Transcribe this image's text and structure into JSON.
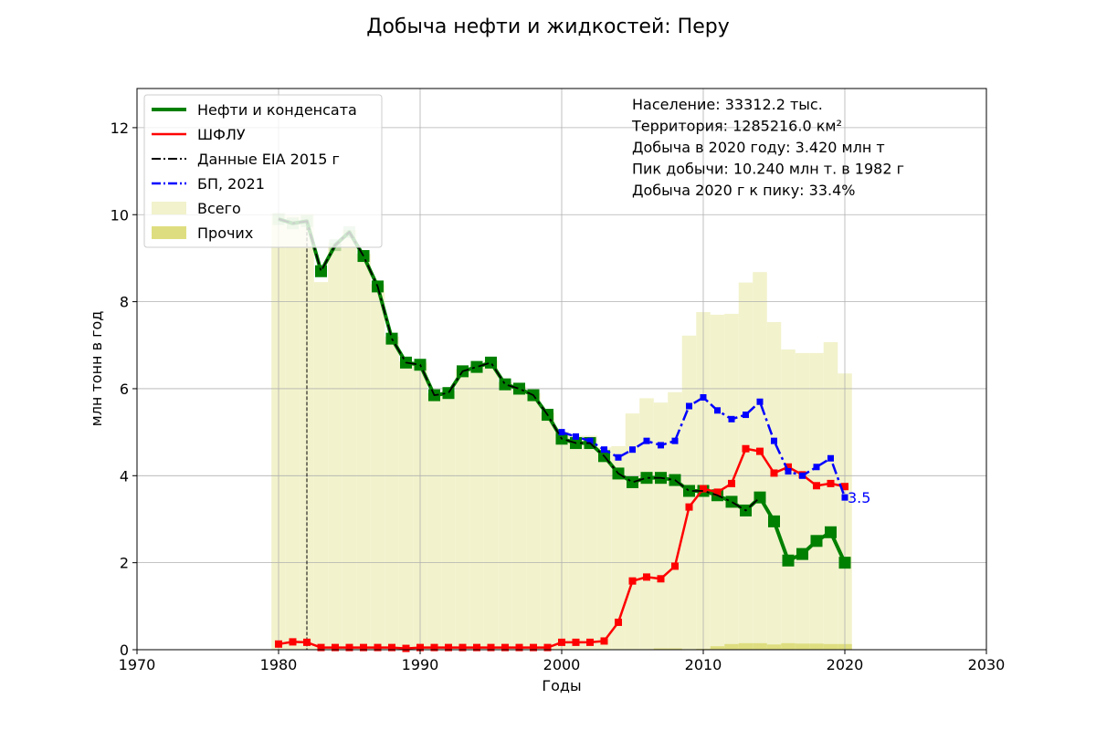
{
  "chart_data": {
    "type": "line",
    "title": "Добыча нефти и жидкостей: Перу",
    "xlabel": "Годы",
    "ylabel": "млн тонн в год",
    "xlim": [
      1970,
      2030
    ],
    "ylim": [
      0,
      12.9
    ],
    "xticks": [
      1970,
      1980,
      1990,
      2000,
      2010,
      2020,
      2030
    ],
    "yticks": [
      0,
      2,
      4,
      6,
      8,
      10,
      12
    ],
    "grid": true,
    "legend_position": "top-left",
    "info_lines": [
      "Население: 33312.2 тыс.",
      "Территория: 1285216.0 км²",
      "Добыча в 2020 году: 3.420 млн т",
      "Пик добычи: 10.240 млн т. в 1982 г",
      "Добыча 2020 г к пику: 33.4%"
    ],
    "marker_line_year": 1982,
    "end_label": "3.5",
    "years": [
      1980,
      1981,
      1982,
      1983,
      1984,
      1985,
      1986,
      1987,
      1988,
      1989,
      1990,
      1991,
      1992,
      1993,
      1994,
      1995,
      1996,
      1997,
      1998,
      1999,
      2000,
      2001,
      2002,
      2003,
      2004,
      2005,
      2006,
      2007,
      2008,
      2009,
      2010,
      2011,
      2012,
      2013,
      2014,
      2015,
      2016,
      2017,
      2018,
      2019,
      2020
    ],
    "series": [
      {
        "name": "Нефти и конденсата",
        "color": "#008000",
        "style": "solid-thick",
        "x": [
          1980,
          1981,
          1982,
          1983,
          1984,
          1985,
          1986,
          1987,
          1988,
          1989,
          1990,
          1991,
          1992,
          1993,
          1994,
          1995,
          1996,
          1997,
          1998,
          1999,
          2000,
          2001,
          2002,
          2003,
          2004,
          2005,
          2006,
          2007,
          2008,
          2009,
          2010,
          2011,
          2012,
          2013,
          2014,
          2015,
          2016,
          2017,
          2018,
          2019,
          2020
        ],
        "values": [
          9.9,
          9.8,
          9.85,
          8.7,
          9.3,
          9.6,
          9.05,
          8.35,
          7.15,
          6.6,
          6.55,
          5.85,
          5.9,
          6.4,
          6.5,
          6.6,
          6.1,
          6.0,
          5.85,
          5.4,
          4.85,
          4.75,
          4.75,
          4.45,
          4.05,
          3.85,
          3.95,
          3.95,
          3.9,
          3.65,
          3.65,
          3.55,
          3.4,
          3.2,
          3.5,
          2.95,
          2.05,
          2.2,
          2.5,
          2.7,
          2.0
        ]
      },
      {
        "name": "ШФЛУ",
        "color": "#ff0000",
        "style": "solid",
        "x": [
          1980,
          1981,
          1982,
          1983,
          1984,
          1985,
          1986,
          1987,
          1988,
          1989,
          1990,
          1991,
          1992,
          1993,
          1994,
          1995,
          1996,
          1997,
          1998,
          1999,
          2000,
          2001,
          2002,
          2003,
          2004,
          2005,
          2006,
          2007,
          2008,
          2009,
          2010,
          2011,
          2012,
          2013,
          2014,
          2015,
          2016,
          2017,
          2018,
          2019,
          2020
        ],
        "values": [
          0.13,
          0.18,
          0.17,
          0.05,
          0.05,
          0.05,
          0.05,
          0.05,
          0.05,
          0.03,
          0.05,
          0.05,
          0.05,
          0.05,
          0.05,
          0.05,
          0.05,
          0.05,
          0.05,
          0.05,
          0.17,
          0.17,
          0.17,
          0.2,
          0.63,
          1.58,
          1.67,
          1.63,
          1.92,
          3.28,
          3.7,
          3.62,
          3.82,
          4.62,
          4.56,
          4.06,
          4.2,
          4.02,
          3.77,
          3.82,
          3.75
        ]
      },
      {
        "name": "Данные EIA 2015 г",
        "color": "#000000",
        "style": "dashdot",
        "x": [
          1980,
          1981,
          1982,
          1983,
          1984,
          1985,
          1986,
          1987,
          1988,
          1989,
          1990,
          1991,
          1992,
          1993,
          1994,
          1995,
          1996,
          1997,
          1998,
          1999,
          2000,
          2001,
          2002,
          2003,
          2004,
          2005,
          2006,
          2007,
          2008,
          2009,
          2010,
          2011,
          2012,
          2013,
          2014
        ],
        "values": [
          9.9,
          9.8,
          9.85,
          8.7,
          9.3,
          9.6,
          9.05,
          8.35,
          7.15,
          6.6,
          6.55,
          5.85,
          5.9,
          6.4,
          6.5,
          6.6,
          6.1,
          6.0,
          5.85,
          5.4,
          4.85,
          4.75,
          4.75,
          4.45,
          4.05,
          3.85,
          3.95,
          3.95,
          3.9,
          3.65,
          3.65,
          3.55,
          3.4,
          3.2,
          3.5
        ]
      },
      {
        "name": "БП, 2021",
        "color": "#0000ff",
        "style": "dashdot",
        "x": [
          2000,
          2001,
          2002,
          2003,
          2004,
          2005,
          2006,
          2007,
          2008,
          2009,
          2010,
          2011,
          2012,
          2013,
          2014,
          2015,
          2016,
          2017,
          2018,
          2019,
          2020
        ],
        "values": [
          5.0,
          4.9,
          4.8,
          4.6,
          4.42,
          4.6,
          4.8,
          4.7,
          4.8,
          5.6,
          5.8,
          5.5,
          5.3,
          5.4,
          5.7,
          4.8,
          4.1,
          4.0,
          4.2,
          4.4,
          3.5
        ]
      }
    ],
    "bars": [
      {
        "name": "Всего",
        "color": "#f2f2cc",
        "x": [
          1980,
          1981,
          1982,
          1983,
          1984,
          1985,
          1986,
          1987,
          1988,
          1989,
          1990,
          1991,
          1992,
          1993,
          1994,
          1995,
          1996,
          1997,
          1998,
          1999,
          2000,
          2001,
          2002,
          2003,
          2004,
          2005,
          2006,
          2007,
          2008,
          2009,
          2010,
          2011,
          2012,
          2013,
          2014,
          2015,
          2016,
          2017,
          2018,
          2019,
          2020
        ],
        "values": [
          10.03,
          9.98,
          10.02,
          8.45,
          9.35,
          9.65,
          9.1,
          8.4,
          7.2,
          6.63,
          6.6,
          5.9,
          5.95,
          6.45,
          6.55,
          6.65,
          6.15,
          6.05,
          5.9,
          5.45,
          5.02,
          4.92,
          4.92,
          4.65,
          4.68,
          5.43,
          5.78,
          5.68,
          5.92,
          7.22,
          7.76,
          7.7,
          7.72,
          8.44,
          8.68,
          7.53,
          6.9,
          6.82,
          6.82,
          7.07,
          6.35
        ]
      },
      {
        "name": "Прочих",
        "color": "#dede80",
        "x": [
          1980,
          1981,
          1982,
          1983,
          1984,
          1985,
          1986,
          1987,
          1988,
          1989,
          1990,
          1991,
          1992,
          1993,
          1994,
          1995,
          1996,
          1997,
          1998,
          1999,
          2000,
          2001,
          2002,
          2003,
          2004,
          2005,
          2006,
          2007,
          2008,
          2009,
          2010,
          2011,
          2012,
          2013,
          2014,
          2015,
          2016,
          2017,
          2018,
          2019,
          2020
        ],
        "values": [
          0,
          0,
          0,
          0,
          0,
          0,
          0,
          0,
          0,
          0,
          0,
          0,
          0,
          0,
          0,
          0,
          0,
          0,
          0,
          0,
          0,
          0,
          0,
          0,
          0,
          0,
          0,
          0.03,
          0.03,
          0,
          0.02,
          0.08,
          0.13,
          0.15,
          0.15,
          0.12,
          0.15,
          0.14,
          0.14,
          0.13,
          0.13
        ]
      }
    ]
  }
}
